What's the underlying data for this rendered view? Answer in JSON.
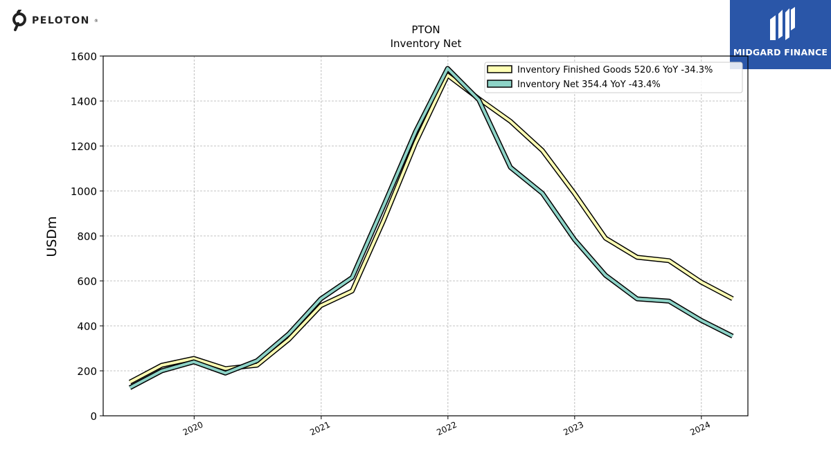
{
  "brand": {
    "name": "PELOTON",
    "reg_mark": "®"
  },
  "watermark": {
    "name": "MIDGARD FINANCE"
  },
  "chart_data": {
    "type": "line",
    "title": "PTON",
    "subtitle": "Inventory Net",
    "ylabel": "USDm",
    "xlabel": "",
    "ylim": [
      0,
      1600
    ],
    "yticks": [
      0,
      200,
      400,
      600,
      800,
      1000,
      1200,
      1400,
      1600
    ],
    "xticks": [
      "2020",
      "2021",
      "2022",
      "2023",
      "2024"
    ],
    "grid": true,
    "legend_position": "top-right",
    "x": [
      "2019-06-30",
      "2019-09-30",
      "2019-12-31",
      "2020-03-31",
      "2020-06-30",
      "2020-09-30",
      "2020-12-31",
      "2021-03-31",
      "2021-06-30",
      "2021-09-30",
      "2021-12-31",
      "2022-03-31",
      "2022-06-30",
      "2022-09-30",
      "2022-12-31",
      "2023-03-31",
      "2023-06-30",
      "2023-09-30",
      "2023-12-31",
      "2024-03-31"
    ],
    "series": [
      {
        "name": "Inventory Finished Goods",
        "legend_label": "Inventory Finished Goods  520.6 YoY -34.3%",
        "color": "#ffffb3",
        "values": [
          150,
          225,
          255,
          210,
          225,
          340,
          490,
          555,
          870,
          1215,
          1515,
          1410,
          1310,
          1180,
          990,
          790,
          705,
          690,
          595,
          521
        ]
      },
      {
        "name": "Inventory Net",
        "legend_label": "Inventory Net  354.4 YoY -43.4%",
        "color": "#8dd3c7",
        "values": [
          125,
          200,
          240,
          190,
          245,
          365,
          520,
          615,
          935,
          1265,
          1545,
          1405,
          1105,
          990,
          785,
          625,
          520,
          510,
          425,
          354
        ]
      }
    ]
  }
}
